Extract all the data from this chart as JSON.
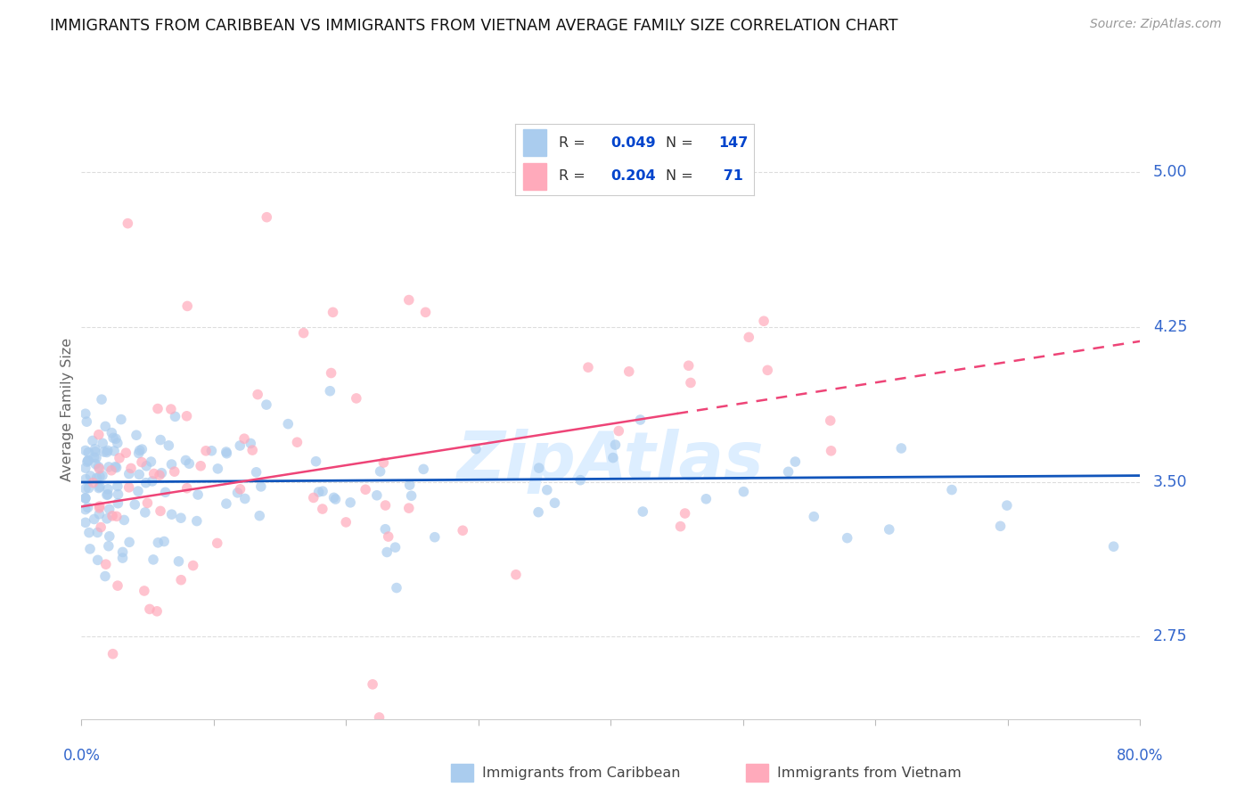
{
  "title": "IMMIGRANTS FROM CARIBBEAN VS IMMIGRANTS FROM VIETNAM AVERAGE FAMILY SIZE CORRELATION CHART",
  "source": "Source: ZipAtlas.com",
  "ylabel": "Average Family Size",
  "right_yticks": [
    2.75,
    3.5,
    4.25,
    5.0
  ],
  "caribbean_R": 0.049,
  "caribbean_N": 147,
  "vietnam_R": 0.204,
  "vietnam_N": 71,
  "xmin": 0.0,
  "xmax": 80.0,
  "ymin": 2.35,
  "ymax": 5.35,
  "caribbean_color": "#aaccee",
  "vietnam_color": "#ffaabb",
  "caribbean_trend_color": "#1155bb",
  "vietnam_trend_color": "#ee4477",
  "background_color": "#ffffff",
  "grid_color": "#dddddd",
  "title_fontsize": 12.5,
  "right_tick_color": "#3366cc",
  "watermark_color": "#ddeeff",
  "carib_trend_slope": 0.0004,
  "carib_trend_intercept": 3.498,
  "viet_trend_slope": 0.01,
  "viet_trend_intercept": 3.38,
  "viet_solid_end": 45,
  "legend_R_color": "#0044cc",
  "legend_N_color": "#0044cc",
  "legend_text_color": "#333333"
}
